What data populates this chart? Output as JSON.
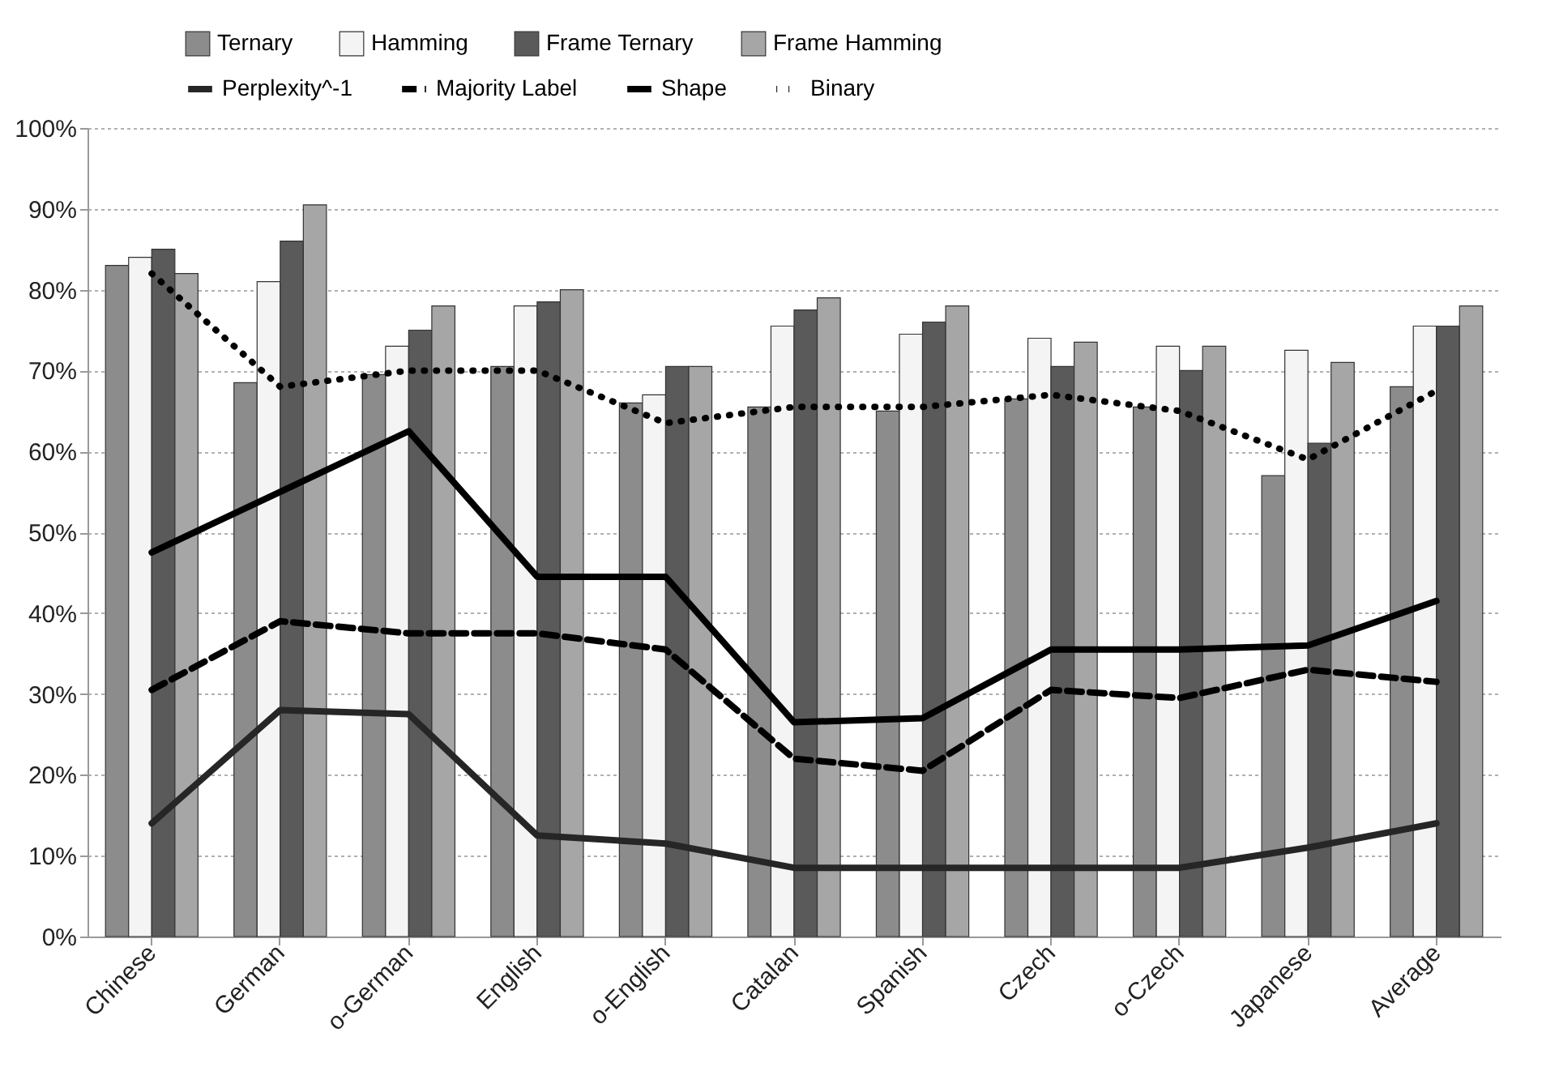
{
  "chart_data": {
    "type": "bar",
    "categories": [
      "Chinese",
      "German",
      "o-German",
      "English",
      "o-English",
      "Catalan",
      "Spanish",
      "Czech",
      "o-Czech",
      "Japanese",
      "Average"
    ],
    "series": [
      {
        "name": "Ternary",
        "type": "bar",
        "color": "#8c8c8c",
        "values": [
          83,
          68.5,
          69.5,
          70.5,
          66,
          65.5,
          65,
          66.5,
          65.5,
          57,
          68
        ]
      },
      {
        "name": "Hamming",
        "type": "bar",
        "color": "#f4f4f4",
        "values": [
          84,
          81,
          73,
          78,
          67,
          75.5,
          74.5,
          74,
          73,
          72.5,
          75.5
        ]
      },
      {
        "name": "Frame Ternary",
        "type": "bar",
        "color": "#5a5a5a",
        "values": [
          85,
          86,
          75,
          78.5,
          70.5,
          77.5,
          76,
          70.5,
          70,
          61,
          75.5
        ]
      },
      {
        "name": "Frame Hamming",
        "type": "bar",
        "color": "#a6a6a6",
        "values": [
          82,
          90.5,
          78,
          80,
          70.5,
          79,
          78,
          73.5,
          73,
          71,
          78
        ]
      },
      {
        "name": "Perplexity^-1",
        "type": "line",
        "line_style": "solid",
        "color": "#262626",
        "values": [
          14,
          28,
          27.5,
          12.5,
          11.5,
          8.5,
          8.5,
          8.5,
          8.5,
          11,
          14
        ]
      },
      {
        "name": "Majority Label",
        "type": "line",
        "line_style": "dashed",
        "color": "#000000",
        "values": [
          30.5,
          39,
          37.5,
          37.5,
          35.5,
          22,
          20.5,
          30.5,
          29.5,
          33,
          31.5
        ]
      },
      {
        "name": "Shape",
        "type": "line",
        "line_style": "solid",
        "color": "#000000",
        "values": [
          47.5,
          55,
          62.5,
          44.5,
          44.5,
          26.5,
          27,
          35.5,
          35.5,
          36,
          41.5
        ]
      },
      {
        "name": "Binary",
        "type": "line",
        "line_style": "dotted",
        "color": "#000000",
        "values": [
          82,
          68,
          70,
          70,
          63.5,
          65.5,
          65.5,
          67,
          65,
          59,
          67.5
        ]
      }
    ],
    "ylim": [
      0,
      100
    ],
    "yticks": [
      {
        "value": 0,
        "label": "0%"
      },
      {
        "value": 10,
        "label": "10%"
      },
      {
        "value": 20,
        "label": "20%"
      },
      {
        "value": 30,
        "label": "30%"
      },
      {
        "value": 40,
        "label": "40%"
      },
      {
        "value": 50,
        "label": "50%"
      },
      {
        "value": 60,
        "label": "60%"
      },
      {
        "value": 70,
        "label": "70%"
      },
      {
        "value": 80,
        "label": "80%"
      },
      {
        "value": 90,
        "label": "90%"
      },
      {
        "value": 100,
        "label": "100%"
      }
    ],
    "grid": "y",
    "legend": "top"
  }
}
